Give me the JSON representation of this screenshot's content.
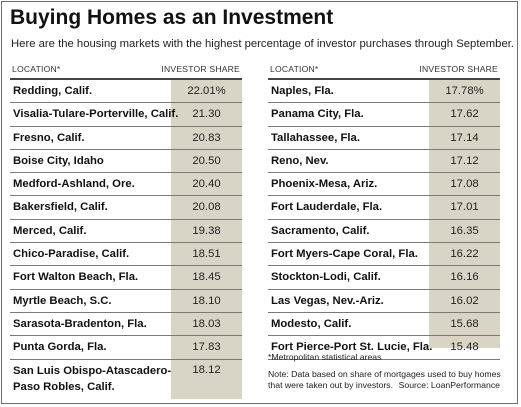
{
  "title": "Buying Homes as an Investment",
  "subtitle": "Here are the housing markets with the highest percentage of investor purchases through September.",
  "columns": {
    "location": "LOCATION*",
    "share": "INVESTOR SHARE"
  },
  "left_rows": [
    {
      "location": "Redding, Calif.",
      "share": "22.01%"
    },
    {
      "location": "Visalia-Tulare-Porterville, Calif.",
      "share": "21.30"
    },
    {
      "location": "Fresno, Calif.",
      "share": "20.83"
    },
    {
      "location": "Boise City, Idaho",
      "share": "20.50"
    },
    {
      "location": "Medford-Ashland, Ore.",
      "share": "20.40"
    },
    {
      "location": "Bakersfield, Calif.",
      "share": "20.08"
    },
    {
      "location": "Merced, Calif.",
      "share": "19.38"
    },
    {
      "location": "Chico-Paradise, Calif.",
      "share": "18.51"
    },
    {
      "location": "Fort Walton Beach, Fla.",
      "share": "18.45"
    },
    {
      "location": "Myrtle Beach, S.C.",
      "share": "18.10"
    },
    {
      "location": "Sarasota-Bradenton, Fla.",
      "share": "18.03"
    },
    {
      "location": "Punta Gorda, Fla.",
      "share": "17.83"
    },
    {
      "location": "San Luis Obispo-Atascadero-Paso Robles, Calif.",
      "share": "18.12"
    }
  ],
  "right_rows": [
    {
      "location": "Naples, Fla.",
      "share": "17.78%"
    },
    {
      "location": "Panama City, Fla.",
      "share": "17.62"
    },
    {
      "location": "Tallahassee, Fla.",
      "share": "17.14"
    },
    {
      "location": "Reno, Nev.",
      "share": "17.12"
    },
    {
      "location": "Phoenix-Mesa, Ariz.",
      "share": "17.08"
    },
    {
      "location": "Fort Lauderdale, Fla.",
      "share": "17.01"
    },
    {
      "location": "Sacramento, Calif.",
      "share": "16.35"
    },
    {
      "location": "Fort Myers-Cape Coral, Fla.",
      "share": "16.22"
    },
    {
      "location": "Stockton-Lodi, Calif.",
      "share": "16.16"
    },
    {
      "location": "Las Vegas, Nev.-Ariz.",
      "share": "16.02"
    },
    {
      "location": "Modesto, Calif.",
      "share": "15.68"
    },
    {
      "location": "Fort Pierce-Port St. Lucie, Fla.",
      "share": "15.48"
    }
  ],
  "footnote": "*Metropolitan statistical areas",
  "note": "Note: Data based on share of mortgages used to buy homes that were taken out by investors.",
  "source": "Source: LoanPerformance",
  "colors": {
    "shade": "#d8d5c6",
    "rule": "#7a7a7a",
    "text": "#111111"
  }
}
